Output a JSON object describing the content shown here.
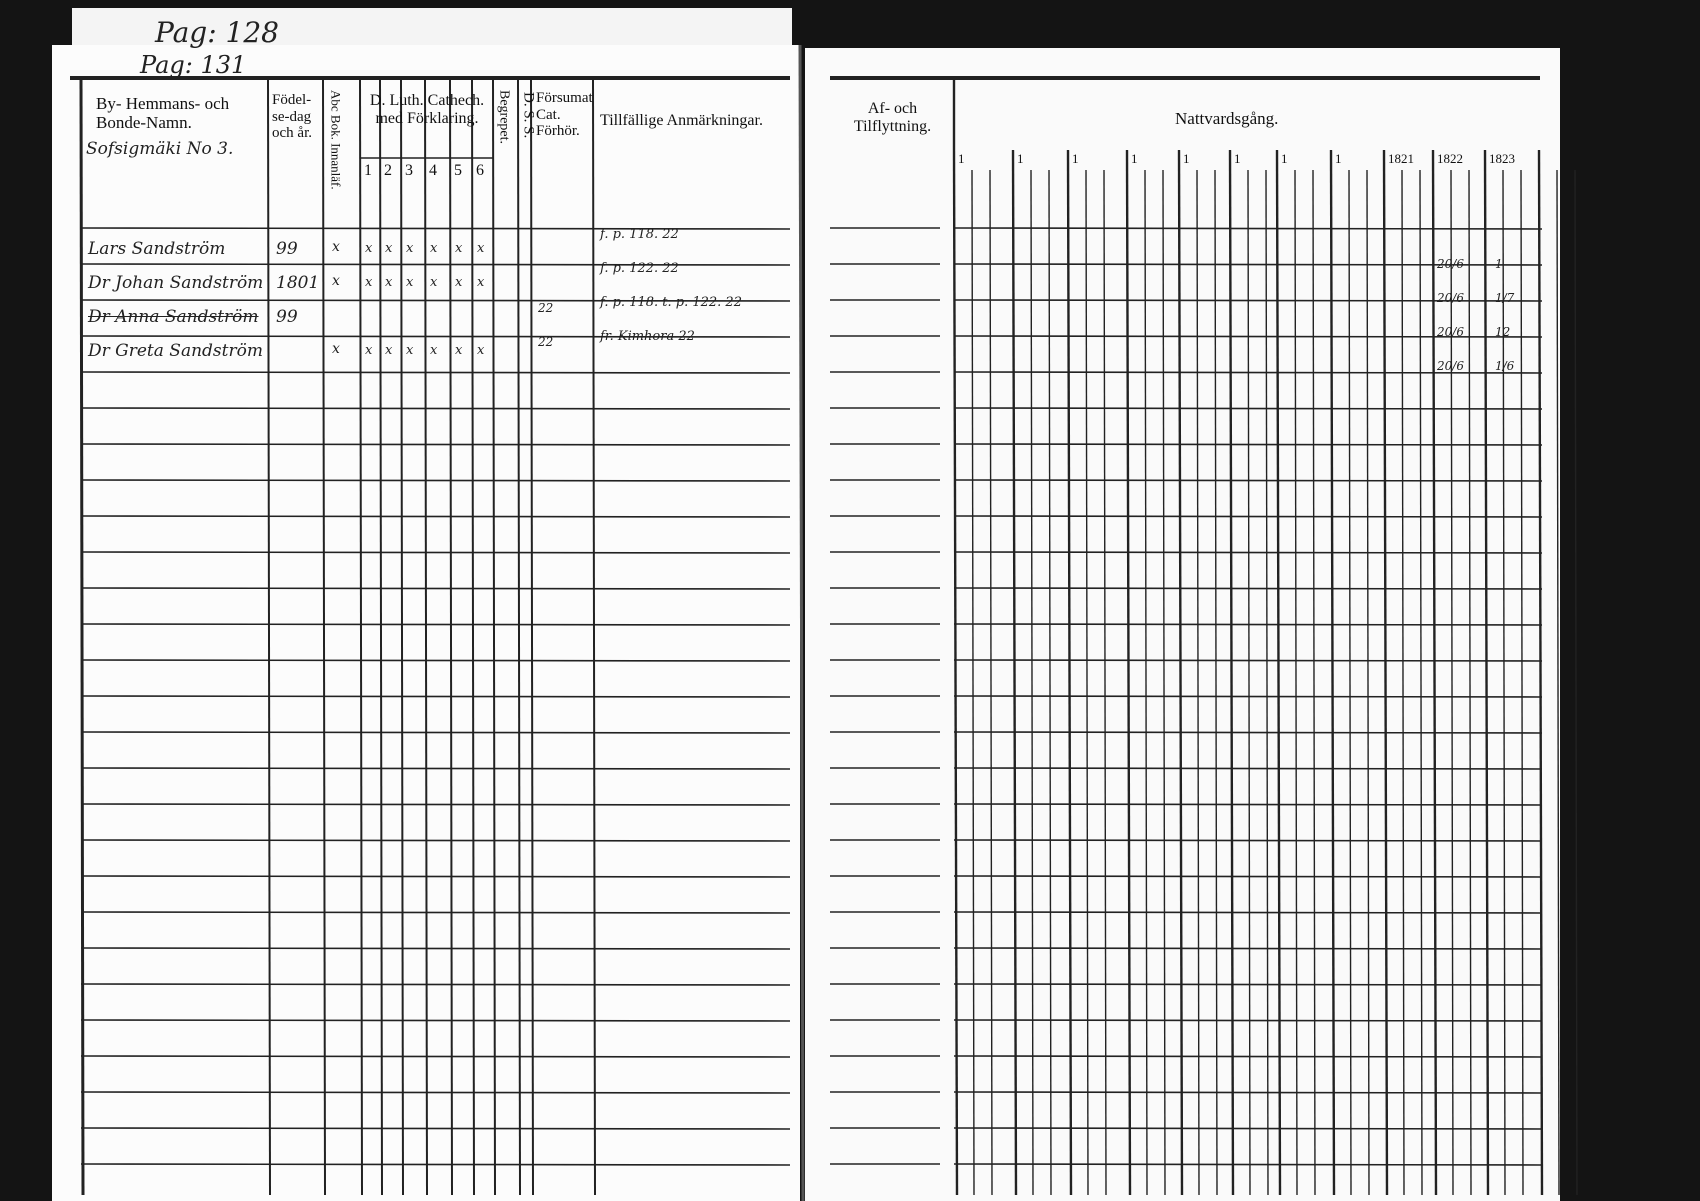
{
  "page_numbers": [
    "Pag: 128",
    "Pag: 131"
  ],
  "left_page": {
    "headers": {
      "name": "By- Hemmans- och Bonde-Namn.",
      "birth": "Födel-se-dag och år.",
      "abc": "Abc Bok. Innanläf.",
      "catech": "D. Luth. Cathech. med Förklaring.",
      "catech_cols": [
        "1",
        "2",
        "3",
        "4",
        "5",
        "6"
      ],
      "begrepp": "Begrepet.",
      "dss": "D. S. S.",
      "forsumat": "Försumat Cat. Förhör.",
      "notes": "Tillfällige Anmärkningar."
    },
    "village": "Sofsigmäki No 3.",
    "rows": [
      {
        "name": "Lars Sandström",
        "birth": "99",
        "abc": "x",
        "catech": [
          "x",
          "x",
          "x",
          "x",
          "x",
          "x"
        ],
        "forsumat": "",
        "notes": "f. p. 118. 22"
      },
      {
        "name": "Dr Johan Sandström",
        "birth": "1801",
        "abc": "x",
        "catech": [
          "x",
          "x",
          "x",
          "x",
          "x",
          "x"
        ],
        "forsumat": "",
        "notes": "f. p. 122. 22"
      },
      {
        "name": "Dr Anna Sandström",
        "birth": "99",
        "abc": "",
        "catech": [
          "",
          "",
          "",
          "",
          "",
          ""
        ],
        "forsumat": "22",
        "notes": "f. p. 118. t. p. 122. 22"
      },
      {
        "name": "Dr Greta Sandström",
        "birth": "",
        "abc": "x",
        "catech": [
          "x",
          "x",
          "x",
          "x",
          "x",
          "x"
        ],
        "forsumat": "22",
        "notes": "fr. Kimhora 22"
      }
    ]
  },
  "right_page": {
    "headers": {
      "moves": "Af- och Tilflyttning.",
      "communion": "Nattvardsgång."
    },
    "year_cols": [
      "1",
      "1",
      "1",
      "1",
      "1",
      "1",
      "1",
      "1",
      "1821",
      "1822",
      "1823"
    ],
    "marks": [
      [
        "20/6",
        "1"
      ],
      [
        "20/6",
        "1/7"
      ],
      [
        "20/6",
        "12"
      ],
      [
        "20/6",
        "1/6"
      ]
    ]
  }
}
